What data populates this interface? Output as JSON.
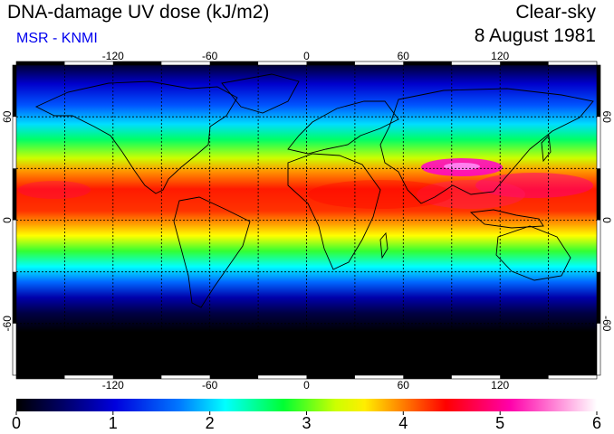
{
  "header": {
    "title": "DNA-damage UV dose (kJ/m2)",
    "subtitle": "MSR - KNMI",
    "subtitle_color": "#0000ee",
    "sky": "Clear-sky",
    "date": "8 August 1981"
  },
  "map": {
    "projection": "equirectangular",
    "lon_range": [
      -180,
      180
    ],
    "lat_range": [
      -90,
      90
    ],
    "lon_ticks": [
      "-120",
      "-60",
      "0",
      "60",
      "120"
    ],
    "lat_ticks": [
      "60",
      "0",
      "-60"
    ],
    "gridlines": "dashed every 30 degrees"
  },
  "colorbar": {
    "min": 0,
    "max": 6,
    "labels": [
      "0",
      "1",
      "2",
      "3",
      "4",
      "5",
      "6"
    ],
    "colors": [
      "#000000",
      "#0000cc",
      "#0066ff",
      "#00ffff",
      "#00ff33",
      "#ffff00",
      "#ff7f00",
      "#ff0000",
      "#ff00a0",
      "#ffffff"
    ]
  }
}
